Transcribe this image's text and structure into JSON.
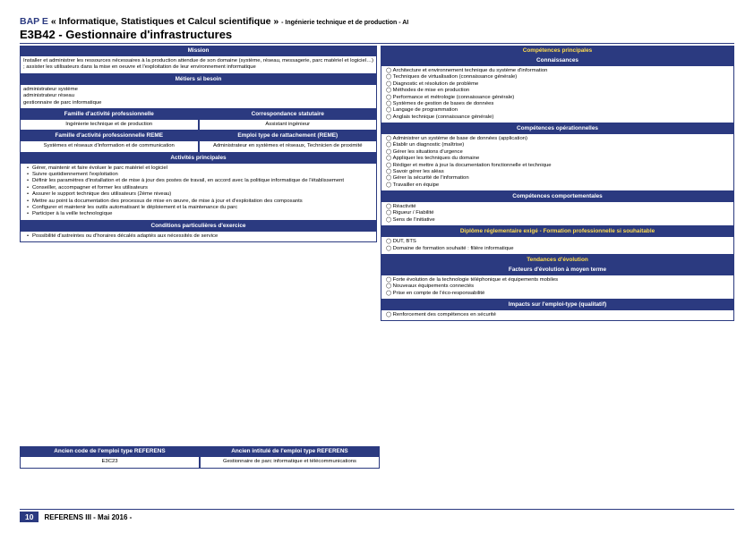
{
  "header": {
    "bap_prefix": "BAP E",
    "bap_title": " « Informatique, Statistiques et Calcul scientifique » ",
    "bap_sub": "- Ingénierie technique et de production - AI",
    "code_title": "E3B42 - Gestionnaire d'infrastructures"
  },
  "left": {
    "mission_hdr": "Mission",
    "mission_txt": "Installer et administrer les ressources nécessaires à la production attendue de son domaine (système, réseau, messagerie, parc matériel et logiciel…) ; assister les utilisateurs dans la mise en oeuvre et l'exploitation de leur environnement informatique",
    "metiers_hdr": "Métiers si besoin",
    "metiers": [
      "administrateur système",
      "administrateur réseau",
      "gestionnaire de parc informatique"
    ],
    "fam_pro_hdr": "Famille d'activité professionnelle",
    "corr_hdr": "Correspondance statutaire",
    "fam_pro_txt": "Ingénierie technique et de production",
    "corr_txt": "Assistant ingénieur",
    "fam_reme_hdr": "Famille d'activité professionnelle REME",
    "emploi_reme_hdr": "Emploi type de rattachement (REME)",
    "fam_reme_txt": "Systèmes et réseaux d'information et de communication",
    "emploi_reme_txt": "Administrateur en systèmes et réseaux, Technicien de proximité",
    "act_hdr": "Activités principales",
    "activites": [
      "Gérer, maintenir et faire évoluer le parc matériel et logiciel",
      "Suivre quotidiennement l'exploitation",
      "Définir les paramètres d'installation et de mise à jour des postes de travail, en accord avec la politique informatique de l'établissement",
      "Conseiller, accompagner et former les utilisateurs",
      "Assurer le support technique des utilisateurs (2ème niveau)",
      "Mettre au point la documentation des processus de mise en œuvre, de mise à jour et d'exploitation des composants",
      "Configurer et maintenir les outils automatisant le déploiement et la maintenance du parc",
      "Participer à la veille technologique"
    ],
    "cond_hdr": "Conditions particulières d'exercice",
    "cond_txt": "Possibilité d'astreintes ou d'horaires décalés adaptés aux nécessités de service"
  },
  "right": {
    "comp_hdr": "Compétences principales",
    "conn_hdr": "Connaissances",
    "connaissances": [
      "Architecture et environnement technique du système d'information",
      "Techniques de virtualisation (connaissance générale)",
      "Diagnostic et résolution de problème",
      "Méthodes de mise en production",
      "Performance et métrologie (connaissance générale)",
      "Systèmes de gestion de bases de données",
      "Langage de programmation",
      "Anglais technique (connaissance générale)"
    ],
    "oper_hdr": "Compétences opérationnelles",
    "operationnelles": [
      "Administrer un système de base de données (application)",
      "Établir un diagnostic (maîtrise)",
      "Gérer les situations d'urgence",
      "Appliquer les techniques du domaine",
      "Rédiger et mettre à jour la documentation fonctionnelle et technique",
      "Savoir gérer les aléas",
      "Gérer la sécurité de l'information",
      "Travailler en équipe"
    ],
    "comp_comport_hdr": "Compétences comportementales",
    "comportementales": [
      "Réactivité",
      "Rigueur / Fiabilité",
      "Sens de l'initiative"
    ],
    "dipl_hdr": "Diplôme réglementaire exigé - Formation professionnelle si souhaitable",
    "diplome": [
      "DUT, BTS",
      "Domaine de formation souhaité : filière informatique"
    ],
    "tend_hdr": "Tendances d'évolution",
    "fact_hdr": "Facteurs d'évolution à moyen terme",
    "facteurs": [
      "Forte évolution de la technologie téléphonique et équipements mobiles",
      "Nouveaux équipements connectés",
      "Prise en compte de l'éco-responsabilité"
    ],
    "impact_hdr": "Impacts sur l'emploi-type (qualitatif)",
    "impacts": [
      "Renforcement des compétences en sécurité"
    ]
  },
  "bottom": {
    "old_code_hdr": "Ancien code de l'emploi type REFERENS",
    "old_lib_hdr": "Ancien intitulé de l'emploi type REFERENS",
    "old_code": "E3C23",
    "old_lib": "Gestionnaire de parc informatique et télécommunications"
  },
  "footer": {
    "page": "10",
    "text": "REFERENS III - Mai 2016 -"
  }
}
